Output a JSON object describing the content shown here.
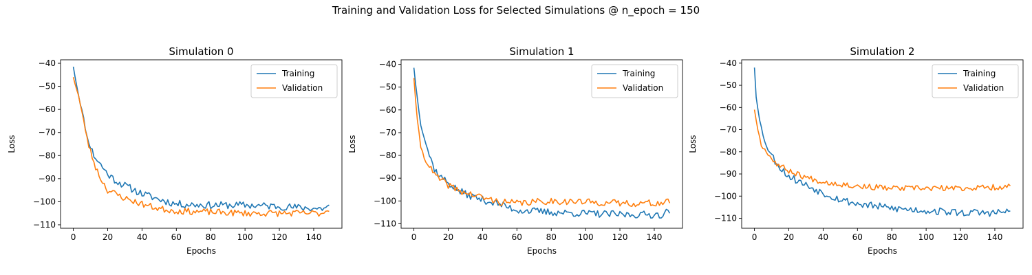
{
  "figure": {
    "suptitle": "Training and Validation Loss for Selected Simulations @ n_epoch = 150"
  },
  "colors": {
    "training": "#1f77b4",
    "validation": "#ff7f0e"
  },
  "chart_data": [
    {
      "type": "line",
      "title": "Simulation 0",
      "xlabel": "Epochs",
      "ylabel": "Loss",
      "xlim": [
        -7.45,
        156.45
      ],
      "ylim": [
        -111.5,
        -38.5
      ],
      "xticks": [
        0,
        20,
        40,
        60,
        80,
        100,
        120,
        140
      ],
      "yticks": [
        -110,
        -100,
        -90,
        -80,
        -70,
        -60,
        -50,
        -40
      ],
      "legend": "top-right",
      "grid": false,
      "series": [
        {
          "name": "Training",
          "start": -41.5,
          "knots": [
            [
              0,
              -41.5
            ],
            [
              3,
              -53.5
            ],
            [
              6,
              -64
            ],
            [
              8,
              -72
            ],
            [
              12,
              -80
            ],
            [
              16,
              -84
            ],
            [
              20,
              -88
            ],
            [
              25,
              -91
            ],
            [
              30,
              -93
            ],
            [
              40,
              -96.5
            ],
            [
              50,
              -99
            ],
            [
              60,
              -101
            ],
            [
              80,
              -101.5
            ],
            [
              100,
              -101.5
            ],
            [
              120,
              -102
            ],
            [
              130,
              -102.5
            ],
            [
              145,
              -103
            ],
            [
              149,
              -102
            ]
          ],
          "noise": 1.6,
          "seed": 11
        },
        {
          "name": "Validation",
          "start": -46,
          "knots": [
            [
              0,
              -46
            ],
            [
              3,
              -54
            ],
            [
              6,
              -65
            ],
            [
              9,
              -76
            ],
            [
              13,
              -85
            ],
            [
              16,
              -90
            ],
            [
              20,
              -95
            ],
            [
              30,
              -98.5
            ],
            [
              40,
              -101
            ],
            [
              50,
              -103
            ],
            [
              60,
              -104
            ],
            [
              80,
              -104.5
            ],
            [
              100,
              -105
            ],
            [
              120,
              -105
            ],
            [
              145,
              -105
            ],
            [
              149,
              -103
            ]
          ],
          "noise": 1.4,
          "seed": 23
        }
      ]
    },
    {
      "type": "line",
      "title": "Simulation 1",
      "xlabel": "Epochs",
      "ylabel": "Loss",
      "xlim": [
        -7.45,
        156.45
      ],
      "ylim": [
        -112,
        -38
      ],
      "xticks": [
        0,
        20,
        40,
        60,
        80,
        100,
        120,
        140
      ],
      "yticks": [
        -110,
        -100,
        -90,
        -80,
        -70,
        -60,
        -50,
        -40
      ],
      "legend": "top-right",
      "grid": false,
      "series": [
        {
          "name": "Training",
          "start": -41.5,
          "knots": [
            [
              0,
              -41.5
            ],
            [
              2,
              -55
            ],
            [
              4,
              -66
            ],
            [
              6,
              -72
            ],
            [
              9,
              -80
            ],
            [
              12,
              -86
            ],
            [
              15,
              -89
            ],
            [
              20,
              -92
            ],
            [
              25,
              -95
            ],
            [
              30,
              -97
            ],
            [
              40,
              -99.5
            ],
            [
              50,
              -101.5
            ],
            [
              60,
              -104
            ],
            [
              80,
              -105
            ],
            [
              100,
              -105.5
            ],
            [
              120,
              -106
            ],
            [
              145,
              -106
            ],
            [
              149,
              -104
            ]
          ],
          "noise": 1.6,
          "seed": 37
        },
        {
          "name": "Validation",
          "start": -46,
          "knots": [
            [
              0,
              -46
            ],
            [
              2,
              -65
            ],
            [
              4,
              -76
            ],
            [
              6,
              -81
            ],
            [
              9,
              -85
            ],
            [
              12,
              -88.5
            ],
            [
              15,
              -90.5
            ],
            [
              20,
              -93
            ],
            [
              25,
              -95
            ],
            [
              30,
              -96.5
            ],
            [
              40,
              -98.5
            ],
            [
              50,
              -100.5
            ],
            [
              60,
              -101
            ],
            [
              80,
              -100
            ],
            [
              100,
              -100.5
            ],
            [
              120,
              -101
            ],
            [
              145,
              -101
            ],
            [
              149,
              -100
            ]
          ],
          "noise": 1.5,
          "seed": 41
        }
      ]
    },
    {
      "type": "line",
      "title": "Simulation 2",
      "xlabel": "Epochs",
      "ylabel": "Loss",
      "xlim": [
        -7.45,
        156.45
      ],
      "ylim": [
        -114.5,
        -38.5
      ],
      "xticks": [
        0,
        20,
        40,
        60,
        80,
        100,
        120,
        140
      ],
      "yticks": [
        -110,
        -100,
        -90,
        -80,
        -70,
        -60,
        -50,
        -40
      ],
      "legend": "top-right",
      "grid": false,
      "series": [
        {
          "name": "Training",
          "start": -42,
          "knots": [
            [
              0,
              -42
            ],
            [
              1,
              -55
            ],
            [
              3,
              -65
            ],
            [
              5,
              -73
            ],
            [
              8,
              -79
            ],
            [
              12,
              -84
            ],
            [
              16,
              -88
            ],
            [
              20,
              -91
            ],
            [
              30,
              -95
            ],
            [
              40,
              -98.5
            ],
            [
              50,
              -101.5
            ],
            [
              60,
              -103.5
            ],
            [
              80,
              -105.5
            ],
            [
              100,
              -106.5
            ],
            [
              120,
              -107.5
            ],
            [
              140,
              -107.5
            ],
            [
              149,
              -107
            ]
          ],
          "noise": 1.7,
          "seed": 53
        },
        {
          "name": "Validation",
          "start": -61,
          "knots": [
            [
              0,
              -61
            ],
            [
              2,
              -70
            ],
            [
              4,
              -77
            ],
            [
              7,
              -80
            ],
            [
              10,
              -83
            ],
            [
              14,
              -86
            ],
            [
              20,
              -88.5
            ],
            [
              30,
              -91.5
            ],
            [
              40,
              -93.5
            ],
            [
              50,
              -94.5
            ],
            [
              60,
              -95.5
            ],
            [
              80,
              -96.5
            ],
            [
              100,
              -96.5
            ],
            [
              120,
              -96.5
            ],
            [
              140,
              -96
            ],
            [
              149,
              -95.5
            ]
          ],
          "noise": 1.3,
          "seed": 67
        }
      ]
    }
  ]
}
